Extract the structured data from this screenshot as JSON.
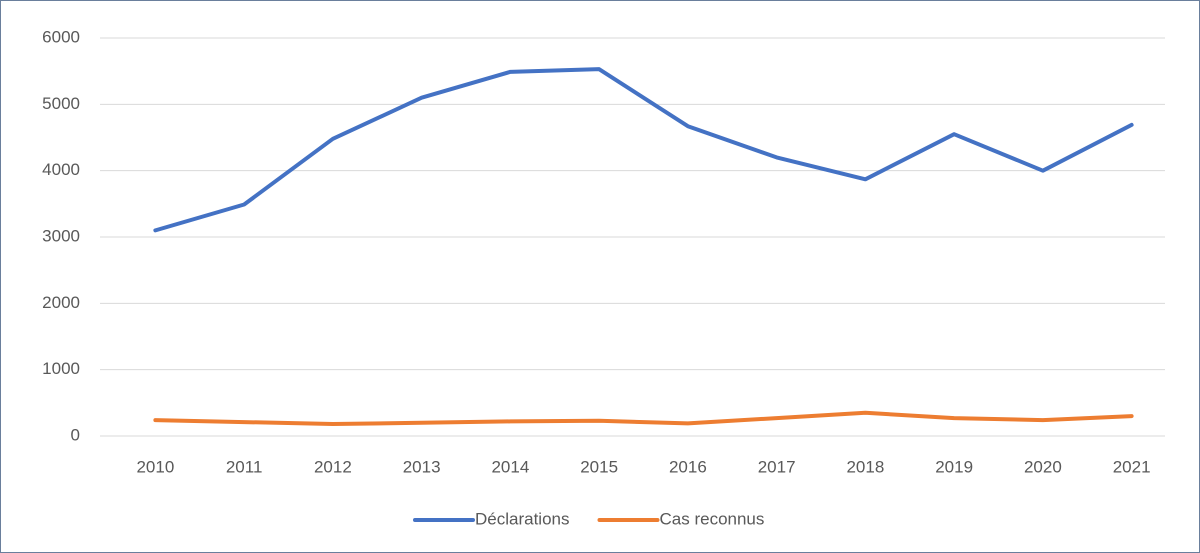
{
  "chart_data": {
    "type": "line",
    "categories": [
      "2010",
      "2011",
      "2012",
      "2013",
      "2014",
      "2015",
      "2016",
      "2017",
      "2018",
      "2019",
      "2020",
      "2021"
    ],
    "series": [
      {
        "name": "Déclarations",
        "color": "#4472c4",
        "values": [
          3100,
          3490,
          4480,
          5100,
          5490,
          5530,
          4670,
          4200,
          3870,
          4550,
          4000,
          4690
        ]
      },
      {
        "name": "Cas reconnus",
        "color": "#ed7d31",
        "values": [
          240,
          210,
          180,
          200,
          220,
          230,
          190,
          270,
          350,
          270,
          240,
          300
        ]
      }
    ],
    "ylim": [
      0,
      6000
    ],
    "yticks": [
      0,
      1000,
      2000,
      3000,
      4000,
      5000,
      6000
    ],
    "grid": true,
    "legend": "bottom"
  }
}
